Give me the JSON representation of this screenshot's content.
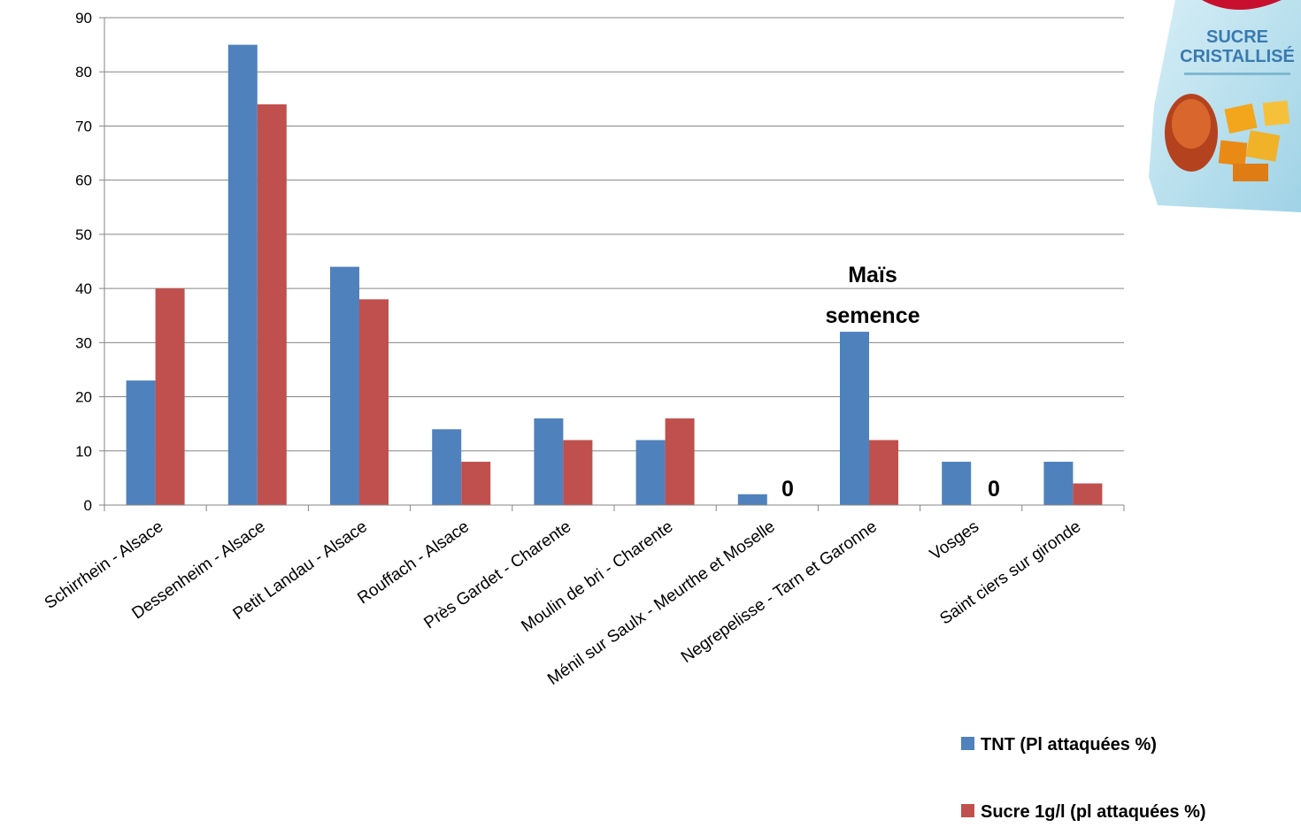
{
  "chart_data": {
    "type": "bar",
    "categories": [
      "Schirrhein - Alsace",
      "Dessenheim - Alsace",
      "Petit Landau - Alsace",
      "Rouffach - Alsace",
      "Près Gardet - Charente",
      "Moulin de bri - Charente",
      "Ménil sur Saulx - Meurthe et Moselle",
      "Negrepelisse - Tarn et Garonne",
      "Vosges",
      "Saint ciers sur gironde"
    ],
    "series": [
      {
        "name": "TNT (Pl attaquées %)",
        "color": "#4f81bd",
        "values": [
          23,
          85,
          44,
          14,
          16,
          12,
          2,
          32,
          8,
          8
        ]
      },
      {
        "name": "Sucre 1g/l (pl attaquées %)",
        "color": "#c0504d",
        "values": [
          40,
          74,
          38,
          8,
          12,
          16,
          0,
          12,
          0,
          4
        ]
      }
    ],
    "ylim": [
      0,
      90
    ],
    "yticks": [
      0,
      10,
      20,
      30,
      40,
      50,
      60,
      70,
      80,
      90
    ],
    "grid": true,
    "legend_position": "bottom-right",
    "annotations": [
      {
        "text": "Maïs",
        "category_index": 7
      },
      {
        "text": "semence",
        "category_index": 7
      },
      {
        "text": "0",
        "category_index": 6
      },
      {
        "text": "0",
        "category_index": 8
      }
    ]
  },
  "image": {
    "icon": "sugar-package-icon",
    "label_line1": "SUCRE",
    "label_line2": "CRISTALLISÉ"
  }
}
